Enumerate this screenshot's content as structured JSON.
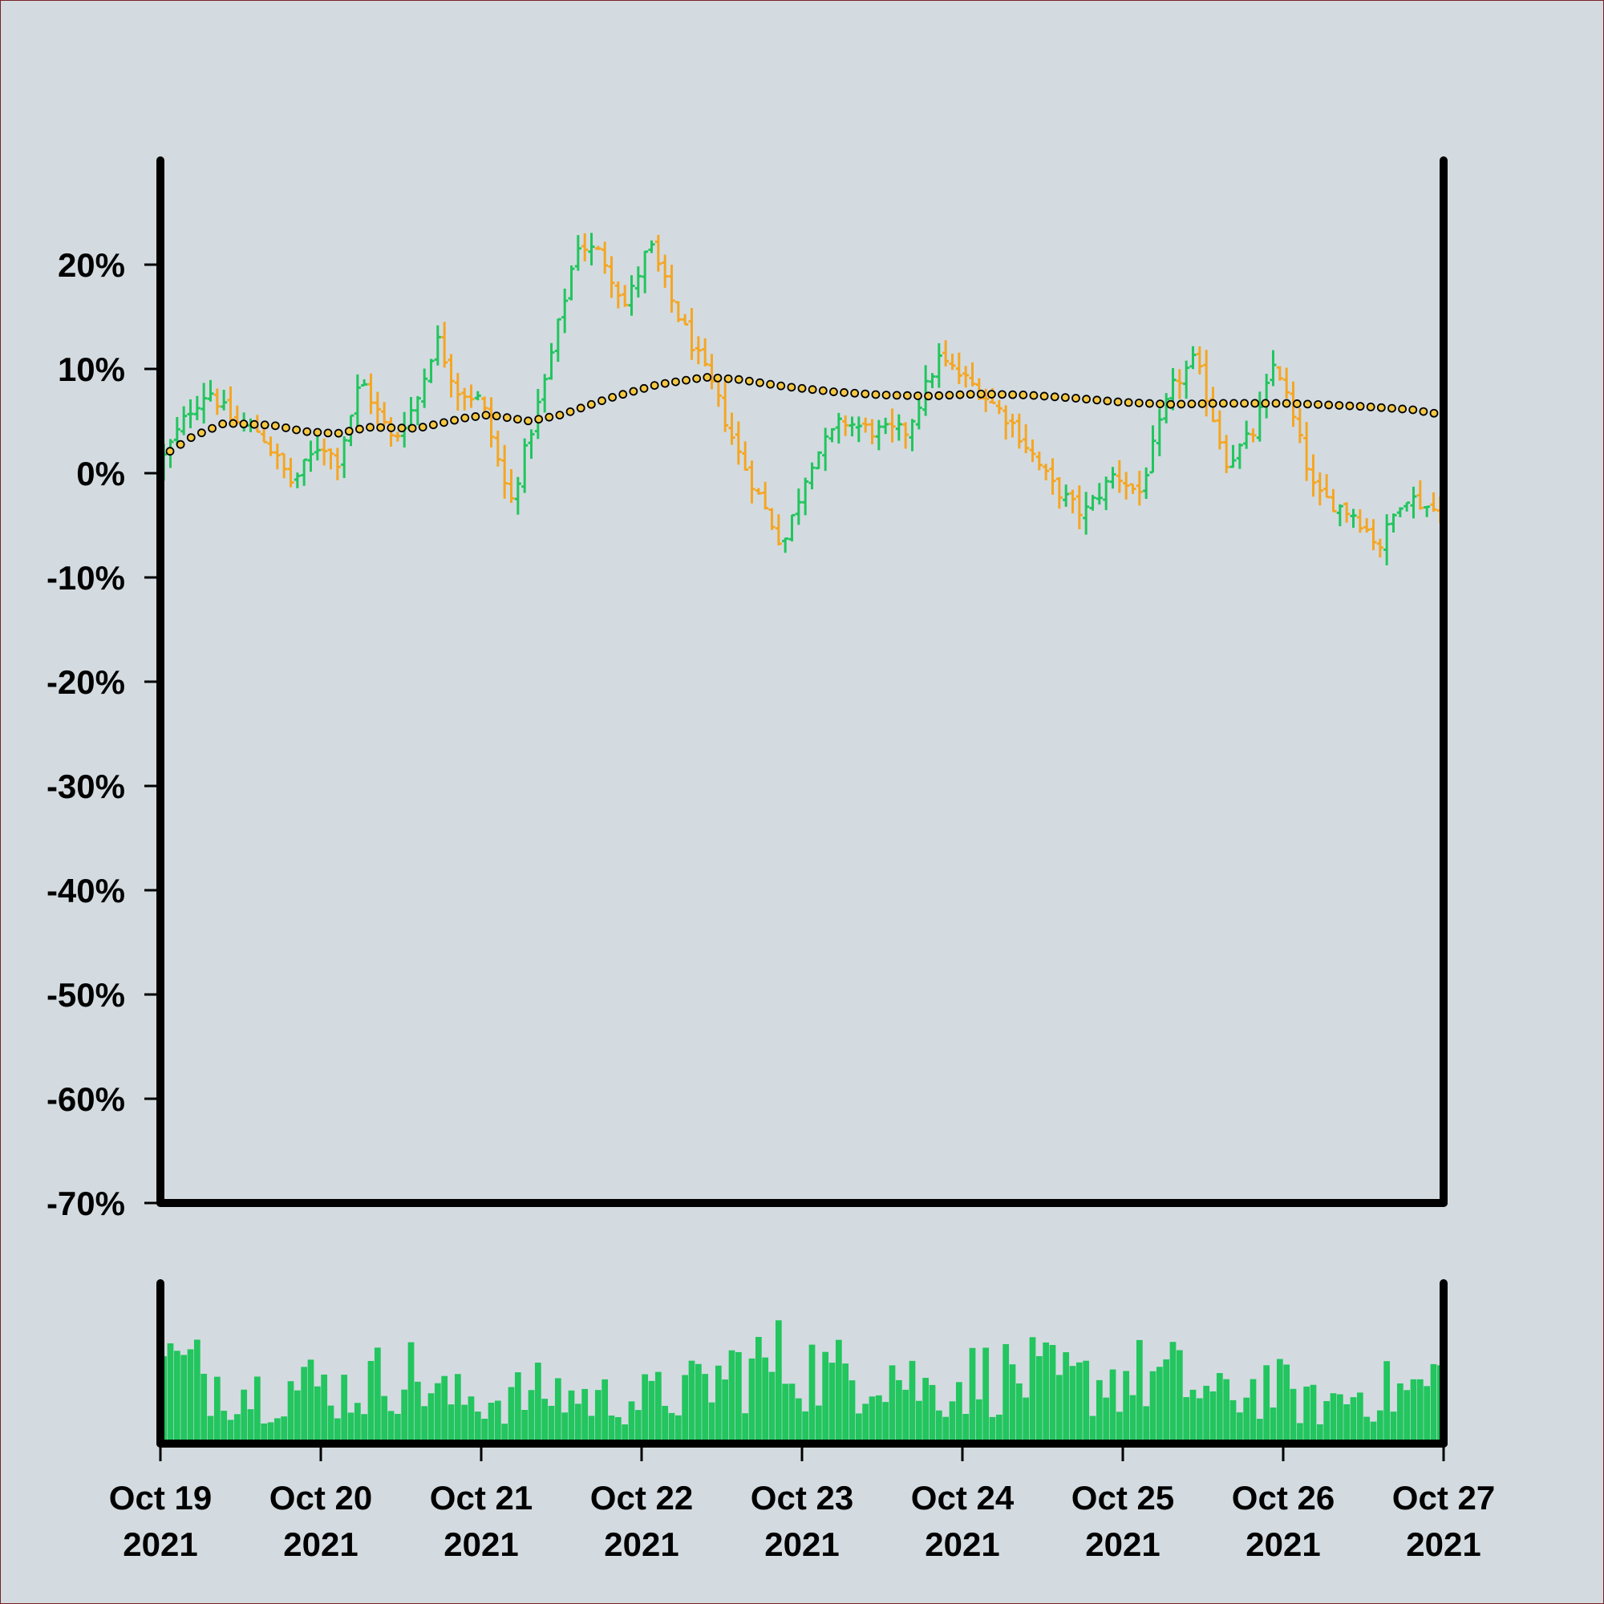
{
  "colors": {
    "background": "#d3dbe0",
    "frame": "#7a2028",
    "up": "#22c55e",
    "down": "#f5a623",
    "ma_fill": "#f5c842",
    "ma_stroke": "#000000",
    "volume": "#22c55e",
    "axis": "#000000"
  },
  "chart_data": {
    "type": "ohlc",
    "title": "",
    "xlabel": "",
    "ylabel": "",
    "y_unit": "percent",
    "ylim": [
      -70,
      30
    ],
    "xlim": [
      "2021-10-19",
      "2021-10-27"
    ],
    "y_ticks": [
      "20%",
      "10%",
      "0%",
      "-10%",
      "-20%",
      "-30%",
      "-40%",
      "-50%",
      "-60%",
      "-70%"
    ],
    "y_tick_values": [
      20,
      10,
      0,
      -10,
      -20,
      -30,
      -40,
      -50,
      -60,
      -70
    ],
    "x_ticks": [
      {
        "line1": "Oct 19",
        "line2": "2021"
      },
      {
        "line1": "Oct 20",
        "line2": "2021"
      },
      {
        "line1": "Oct 21",
        "line2": "2021"
      },
      {
        "line1": "Oct 22",
        "line2": "2021"
      },
      {
        "line1": "Oct 23",
        "line2": "2021"
      },
      {
        "line1": "Oct 24",
        "line2": "2021"
      },
      {
        "line1": "Oct 25",
        "line2": "2021"
      },
      {
        "line1": "Oct 26",
        "line2": "2021"
      },
      {
        "line1": "Oct 27",
        "line2": "2021"
      }
    ],
    "bars_per_day": 24,
    "close_path": [
      {
        "day": 0.0,
        "value": 1
      },
      {
        "day": 0.18,
        "value": 6
      },
      {
        "day": 0.3,
        "value": 8
      },
      {
        "day": 0.45,
        "value": 5
      },
      {
        "day": 0.62,
        "value": 4
      },
      {
        "day": 0.82,
        "value": -1
      },
      {
        "day": 1.0,
        "value": 3
      },
      {
        "day": 1.1,
        "value": 1
      },
      {
        "day": 1.25,
        "value": 9
      },
      {
        "day": 1.45,
        "value": 3
      },
      {
        "day": 1.6,
        "value": 7
      },
      {
        "day": 1.72,
        "value": 13
      },
      {
        "day": 1.85,
        "value": 8
      },
      {
        "day": 2.0,
        "value": 7
      },
      {
        "day": 2.18,
        "value": -3
      },
      {
        "day": 2.4,
        "value": 9
      },
      {
        "day": 2.6,
        "value": 22
      },
      {
        "day": 2.75,
        "value": 21
      },
      {
        "day": 2.9,
        "value": 16
      },
      {
        "day": 3.05,
        "value": 22
      },
      {
        "day": 3.2,
        "value": 16
      },
      {
        "day": 3.45,
        "value": 8
      },
      {
        "day": 3.6,
        "value": 2
      },
      {
        "day": 3.88,
        "value": -7
      },
      {
        "day": 4.05,
        "value": 1
      },
      {
        "day": 4.25,
        "value": 5
      },
      {
        "day": 4.45,
        "value": 4
      },
      {
        "day": 4.65,
        "value": 4
      },
      {
        "day": 4.85,
        "value": 11
      },
      {
        "day": 5.1,
        "value": 8
      },
      {
        "day": 5.3,
        "value": 5
      },
      {
        "day": 5.55,
        "value": -1
      },
      {
        "day": 5.75,
        "value": -4
      },
      {
        "day": 5.95,
        "value": 0
      },
      {
        "day": 6.1,
        "value": -2
      },
      {
        "day": 6.3,
        "value": 8
      },
      {
        "day": 6.45,
        "value": 11
      },
      {
        "day": 6.65,
        "value": 1
      },
      {
        "day": 6.82,
        "value": 4
      },
      {
        "day": 6.95,
        "value": 11
      },
      {
        "day": 7.2,
        "value": -2
      },
      {
        "day": 7.45,
        "value": -4
      },
      {
        "day": 7.6,
        "value": -7
      },
      {
        "day": 7.75,
        "value": -2
      },
      {
        "day": 8.0,
        "value": -4
      }
    ],
    "moving_average": [
      {
        "day": 0.0,
        "value": 1.5
      },
      {
        "day": 0.2,
        "value": 3.5
      },
      {
        "day": 0.4,
        "value": 4.8
      },
      {
        "day": 0.7,
        "value": 4.6
      },
      {
        "day": 0.9,
        "value": 4.0
      },
      {
        "day": 1.1,
        "value": 3.8
      },
      {
        "day": 1.3,
        "value": 4.4
      },
      {
        "day": 1.6,
        "value": 4.3
      },
      {
        "day": 1.9,
        "value": 5.3
      },
      {
        "day": 2.05,
        "value": 5.6
      },
      {
        "day": 2.3,
        "value": 5.0
      },
      {
        "day": 2.5,
        "value": 5.6
      },
      {
        "day": 2.8,
        "value": 7.2
      },
      {
        "day": 3.1,
        "value": 8.5
      },
      {
        "day": 3.4,
        "value": 9.2
      },
      {
        "day": 3.6,
        "value": 9.0
      },
      {
        "day": 3.9,
        "value": 8.3
      },
      {
        "day": 4.2,
        "value": 7.8
      },
      {
        "day": 4.5,
        "value": 7.5
      },
      {
        "day": 4.8,
        "value": 7.4
      },
      {
        "day": 5.1,
        "value": 7.6
      },
      {
        "day": 5.4,
        "value": 7.5
      },
      {
        "day": 5.7,
        "value": 7.2
      },
      {
        "day": 6.0,
        "value": 6.8
      },
      {
        "day": 6.3,
        "value": 6.6
      },
      {
        "day": 6.6,
        "value": 6.7
      },
      {
        "day": 7.0,
        "value": 6.7
      },
      {
        "day": 7.2,
        "value": 6.6
      },
      {
        "day": 7.5,
        "value": 6.4
      },
      {
        "day": 7.8,
        "value": 6.1
      },
      {
        "day": 8.0,
        "value": 5.6
      }
    ],
    "volume_path": [
      {
        "day": 0.0,
        "value": 0.55
      },
      {
        "day": 0.3,
        "value": 0.45
      },
      {
        "day": 0.6,
        "value": 0.35
      },
      {
        "day": 0.9,
        "value": 0.4
      },
      {
        "day": 1.2,
        "value": 0.35
      },
      {
        "day": 1.5,
        "value": 0.5
      },
      {
        "day": 1.8,
        "value": 0.3
      },
      {
        "day": 2.1,
        "value": 0.3
      },
      {
        "day": 2.4,
        "value": 0.35
      },
      {
        "day": 2.7,
        "value": 0.3
      },
      {
        "day": 3.0,
        "value": 0.3
      },
      {
        "day": 3.3,
        "value": 0.35
      },
      {
        "day": 3.6,
        "value": 0.5
      },
      {
        "day": 3.9,
        "value": 0.55
      },
      {
        "day": 4.2,
        "value": 0.45
      },
      {
        "day": 4.5,
        "value": 0.55
      },
      {
        "day": 4.8,
        "value": 0.35
      },
      {
        "day": 5.1,
        "value": 0.45
      },
      {
        "day": 5.4,
        "value": 0.45
      },
      {
        "day": 5.7,
        "value": 0.4
      },
      {
        "day": 6.0,
        "value": 0.45
      },
      {
        "day": 6.3,
        "value": 0.45
      },
      {
        "day": 6.6,
        "value": 0.3
      },
      {
        "day": 6.9,
        "value": 0.4
      },
      {
        "day": 7.2,
        "value": 0.25
      },
      {
        "day": 7.5,
        "value": 0.35
      },
      {
        "day": 7.8,
        "value": 0.35
      },
      {
        "day": 8.0,
        "value": 0.45
      }
    ]
  }
}
